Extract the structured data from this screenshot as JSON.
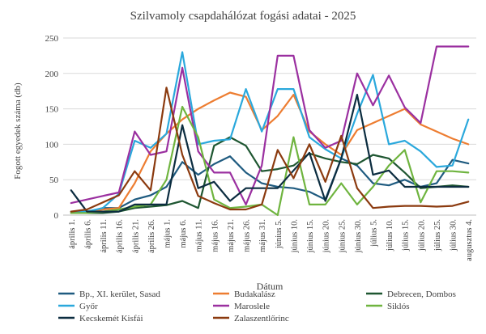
{
  "chart_data": {
    "type": "line",
    "title": "Szilvamoly csapdahálózat fogási adatai - 2025",
    "xlabel": "Dátum",
    "ylabel": "Fogott egyedek száma (db)",
    "ylim": [
      0,
      250
    ],
    "yticks": [
      0,
      50,
      100,
      150,
      200,
      250
    ],
    "grid": "horizontal",
    "legend_position": "bottom",
    "categories": [
      "április 1.",
      "április 6.",
      "április 11.",
      "április 16.",
      "április 21.",
      "április 26.",
      "május 1.",
      "május 6.",
      "május 11.",
      "május 16.",
      "május 21.",
      "május 26.",
      "május 31.",
      "június 5.",
      "június 10.",
      "június 15.",
      "június 20.",
      "június 25.",
      "június 30.",
      "július 5.",
      "július 10.",
      "július 15.",
      "július 20.",
      "július 25.",
      "július 30.",
      "augusztus 4."
    ],
    "x_labels": [
      "április 1.",
      "április 6.",
      "április 11.",
      "április 16.",
      "április 21.",
      "április 26.",
      "május 1.",
      "május 6.",
      "május 11.",
      "május 16.",
      "május 21.",
      "május 26.",
      "május 31.",
      "június 5.",
      "június 10.",
      "június 15.",
      "június 20.",
      "június 25.",
      "június 30.",
      "július 5.",
      "július 10.",
      "július 15.",
      "július 20.",
      "július 25.",
      "július 30.",
      "augusztus 4."
    ],
    "series": [
      {
        "name": "Bp., XI. kerület, Sasad",
        "color": "#1f5b80",
        "values": [
          5,
          3,
          10,
          10,
          22,
          28,
          40,
          75,
          57,
          72,
          83,
          60,
          45,
          40,
          38,
          33,
          22,
          80,
          70,
          45,
          42,
          50,
          40,
          45,
          78,
          73
        ]
      },
      {
        "name": "Budakalász",
        "color": "#ed7d31",
        "values": [
          5,
          5,
          8,
          10,
          45,
          90,
          115,
          135,
          150,
          162,
          173,
          167,
          120,
          140,
          170,
          118,
          100,
          85,
          120,
          130,
          140,
          150,
          128,
          118,
          108,
          100
        ]
      },
      {
        "name": "Debrecen, Dombos",
        "color": "#1e5631",
        "values": [
          3,
          3,
          3,
          5,
          10,
          12,
          14,
          20,
          10,
          98,
          110,
          98,
          62,
          65,
          70,
          87,
          80,
          75,
          72,
          85,
          80,
          60,
          38,
          40,
          42,
          40
        ]
      },
      {
        "name": "Győr",
        "color": "#2aa8dc",
        "values": [
          5,
          5,
          10,
          30,
          105,
          95,
          115,
          230,
          100,
          105,
          107,
          178,
          118,
          178,
          178,
          110,
          93,
          80,
          143,
          198,
          100,
          105,
          90,
          68,
          70,
          135
        ]
      },
      {
        "name": "Maroslele",
        "color": "#9b30a0",
        "values": [
          17,
          22,
          27,
          32,
          118,
          85,
          90,
          208,
          90,
          60,
          60,
          15,
          70,
          225,
          225,
          120,
          95,
          105,
          200,
          155,
          197,
          152,
          130,
          238,
          238,
          238
        ]
      },
      {
        "name": "Siklós",
        "color": "#6fb43f",
        "values": [
          3,
          3,
          5,
          8,
          12,
          15,
          50,
          153,
          110,
          22,
          10,
          12,
          15,
          0,
          110,
          15,
          15,
          45,
          15,
          40,
          70,
          92,
          18,
          62,
          62,
          60
        ]
      },
      {
        "name": "Kecskemét Kisfái",
        "color": "#0c2d40",
        "values": [
          35,
          5,
          5,
          5,
          15,
          15,
          15,
          127,
          38,
          47,
          20,
          38,
          38,
          38,
          63,
          88,
          20,
          80,
          170,
          57,
          63,
          40,
          40,
          40,
          40,
          40
        ]
      },
      {
        "name": "Zalaszentlőrinc",
        "color": "#8b3a0f",
        "values": [
          5,
          8,
          18,
          28,
          62,
          35,
          180,
          85,
          27,
          17,
          8,
          8,
          15,
          92,
          52,
          100,
          47,
          112,
          38,
          10,
          12,
          13,
          13,
          12,
          13,
          19
        ]
      }
    ]
  }
}
